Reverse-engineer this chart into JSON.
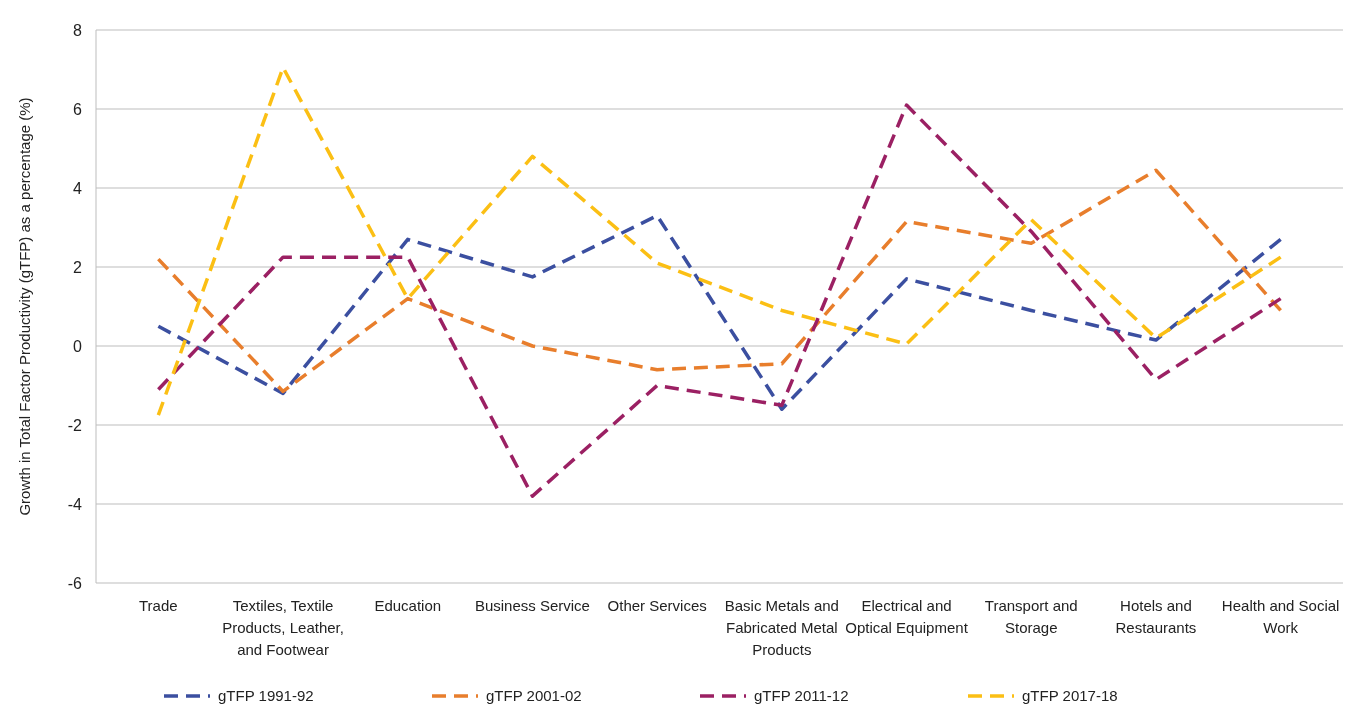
{
  "chart_data": {
    "type": "line",
    "ylabel": "Growth in Total Factor Productivity (gTFP) as a percentage (%)",
    "categories": [
      "Trade",
      "Textiles, Textile Products, Leather, and Footwear",
      "Education",
      "Business Service",
      "Other Services",
      "Basic Metals and Fabricated Metal Products",
      "Electrical and Optical Equipment",
      "Transport and Storage",
      "Hotels and Restaurants",
      "Health and Social Work"
    ],
    "series": [
      {
        "name": "gTFP 1991-92",
        "color": "#3b4fa0",
        "values": [
          0.5,
          -1.2,
          2.7,
          1.75,
          3.3,
          -1.6,
          1.7,
          0.9,
          0.15,
          2.7
        ]
      },
      {
        "name": "gTFP 2001-02",
        "color": "#e87e2c",
        "values": [
          2.2,
          -1.15,
          1.2,
          0,
          -0.6,
          -0.45,
          3.15,
          2.6,
          4.45,
          0.9
        ]
      },
      {
        "name": "gTFP 2011-12",
        "color": "#9b2063",
        "values": [
          -1.1,
          2.25,
          2.25,
          -3.8,
          -1.0,
          -1.5,
          6.1,
          2.9,
          -0.85,
          1.2
        ]
      },
      {
        "name": "gTFP 2017-18",
        "color": "#fbbf14",
        "values": [
          -1.75,
          7.05,
          1.2,
          4.8,
          2.1,
          0.9,
          0.05,
          3.2,
          0.2,
          2.25
        ]
      }
    ],
    "ylim": [
      -6,
      8
    ],
    "yticks": [
      -6,
      -4,
      -2,
      0,
      2,
      4,
      6,
      8
    ],
    "grid": "y",
    "legend": "bottom",
    "line_style": "dashed",
    "marker": "none"
  }
}
